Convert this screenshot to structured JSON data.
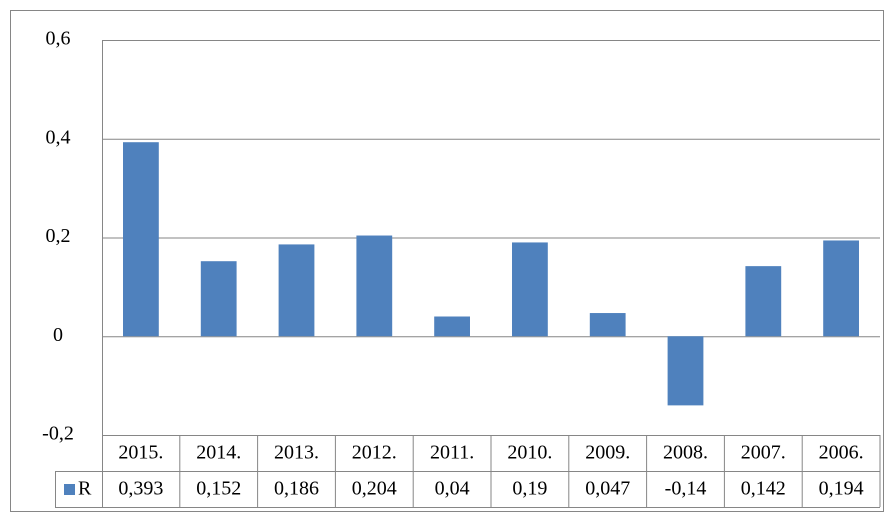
{
  "chart_data": {
    "type": "bar",
    "categories": [
      "2015.",
      "2014.",
      "2013.",
      "2012.",
      "2011.",
      "2010.",
      "2009.",
      "2008.",
      "2007.",
      "2006."
    ],
    "series": [
      {
        "name": "R",
        "color": "#4f81bd",
        "values": [
          0.393,
          0.152,
          0.186,
          0.204,
          0.04,
          0.19,
          0.047,
          -0.14,
          0.142,
          0.194
        ],
        "value_labels": [
          "0,393",
          "0,152",
          "0,186",
          "0,204",
          "0,04",
          "0,19",
          "0,047",
          "-0,14",
          "0,142",
          "0,194"
        ]
      }
    ],
    "ylim": [
      -0.2,
      0.6
    ],
    "yticks": [
      {
        "value": -0.2,
        "label": "-0,2"
      },
      0,
      {
        "value": 0.2,
        "label": "0,2"
      },
      {
        "value": 0.4,
        "label": "0,4"
      },
      {
        "value": 0.6,
        "label": "0,6"
      }
    ],
    "grid": true,
    "data_table": true
  }
}
